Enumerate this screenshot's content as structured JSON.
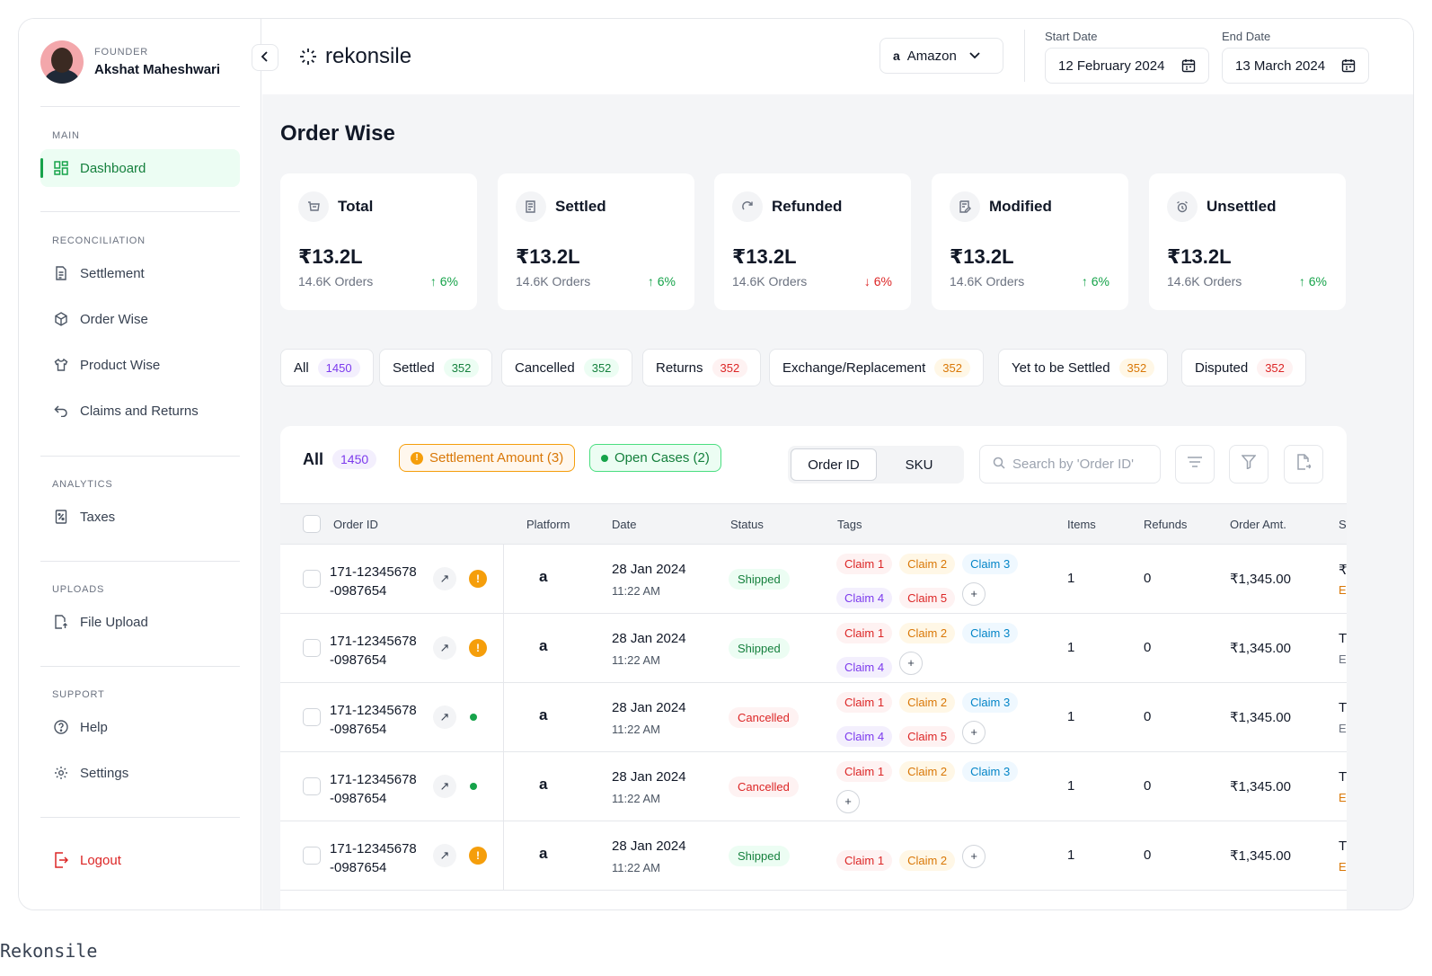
{
  "profile": {
    "role": "FOUNDER",
    "name": "Akshat Maheshwari"
  },
  "sidebar": {
    "sections": {
      "main": "MAIN",
      "reconciliation": "RECONCILIATION",
      "analytics": "ANALYTICS",
      "uploads": "UPLOADS",
      "support": "SUPPORT"
    },
    "items": {
      "dashboard": "Dashboard",
      "settlement": "Settlement",
      "order_wise": "Order Wise",
      "product_wise": "Product Wise",
      "claims_returns": "Claims and Returns",
      "taxes": "Taxes",
      "file_upload": "File Upload",
      "help": "Help",
      "settings": "Settings",
      "logout": "Logout"
    }
  },
  "header": {
    "brand": "rekonsile",
    "platform": {
      "icon": "a",
      "label": "Amazon"
    },
    "start_date": {
      "label": "Start Date",
      "value": "12 February 2024"
    },
    "end_date": {
      "label": "End Date",
      "value": "13 March 2024"
    }
  },
  "page": {
    "title": "Order Wise"
  },
  "stats": [
    {
      "title": "Total",
      "value": "₹13.2L",
      "sub": "14.6K Orders",
      "change": "↑ 6%",
      "direction": "up"
    },
    {
      "title": "Settled",
      "value": "₹13.2L",
      "sub": "14.6K Orders",
      "change": "↑ 6%",
      "direction": "up"
    },
    {
      "title": "Refunded",
      "value": "₹13.2L",
      "sub": "14.6K Orders",
      "change": "↓ 6%",
      "direction": "down"
    },
    {
      "title": "Modified",
      "value": "₹13.2L",
      "sub": "14.6K Orders",
      "change": "↑ 6%",
      "direction": "up"
    },
    {
      "title": "Unsettled",
      "value": "₹13.2L",
      "sub": "14.6K Orders",
      "change": "↑ 6%",
      "direction": "up"
    }
  ],
  "filters": [
    {
      "label": "All",
      "count": "1450",
      "color": "purple"
    },
    {
      "label": "Settled",
      "count": "352",
      "color": "green"
    },
    {
      "label": "Cancelled",
      "count": "352",
      "color": "green"
    },
    {
      "label": "Returns",
      "count": "352",
      "color": "red"
    },
    {
      "label": "Exchange/Replacement",
      "count": "352",
      "color": "orange"
    },
    {
      "label": "Yet to be Settled",
      "count": "352",
      "color": "orange"
    },
    {
      "label": "Disputed",
      "count": "352",
      "color": "red"
    }
  ],
  "panel": {
    "title": "All",
    "count": "1450",
    "chip_warning": "Settlement Amount (3)",
    "chip_ok": "Open Cases (2)",
    "toggle": {
      "order_id": "Order ID",
      "sku": "SKU"
    },
    "search_placeholder": "Search by  'Order ID'"
  },
  "table": {
    "columns": {
      "order_id": "Order ID",
      "platform": "Platform",
      "date": "Date",
      "status": "Status",
      "tags": "Tags",
      "items": "Items",
      "refunds": "Refunds",
      "order_amt": "Order Amt.",
      "settlement_trunc": "S"
    },
    "rows": [
      {
        "id_line1": "171-12345678",
        "id_line2": "-0987654",
        "flag": "warning",
        "platform": "a",
        "date": "28 Jan 2024",
        "time": "11:22 AM",
        "status": "Shipped",
        "tags": [
          "Claim 1",
          "Claim 2",
          "Claim 3",
          "Claim 4",
          "Claim 5"
        ],
        "items": "1",
        "refunds": "0",
        "amount": "₹1,345.00",
        "trunc1": "₹",
        "trunc2": "E"
      },
      {
        "id_line1": "171-12345678",
        "id_line2": "-0987654",
        "flag": "warning",
        "platform": "a",
        "date": "28 Jan 2024",
        "time": "11:22 AM",
        "status": "Shipped",
        "tags": [
          "Claim 1",
          "Claim 2",
          "Claim 3",
          "Claim 4"
        ],
        "items": "1",
        "refunds": "0",
        "amount": "₹1,345.00",
        "trunc1": "T",
        "trunc2": "E"
      },
      {
        "id_line1": "171-12345678",
        "id_line2": "-0987654",
        "flag": "ok",
        "platform": "a",
        "date": "28 Jan 2024",
        "time": "11:22 AM",
        "status": "Cancelled",
        "tags": [
          "Claim 1",
          "Claim 2",
          "Claim 3",
          "Claim 4",
          "Claim 5"
        ],
        "items": "1",
        "refunds": "0",
        "amount": "₹1,345.00",
        "trunc1": "T",
        "trunc2": "E"
      },
      {
        "id_line1": "171-12345678",
        "id_line2": "-0987654",
        "flag": "ok",
        "platform": "a",
        "date": "28 Jan 2024",
        "time": "11:22 AM",
        "status": "Cancelled",
        "tags": [
          "Claim 1",
          "Claim 2",
          "Claim 3"
        ],
        "items": "1",
        "refunds": "0",
        "amount": "₹1,345.00",
        "trunc1": "T",
        "trunc2": "E"
      },
      {
        "id_line1": "171-12345678",
        "id_line2": "-0987654",
        "flag": "warning",
        "platform": "a",
        "date": "28 Jan 2024",
        "time": "11:22 AM",
        "status": "Shipped",
        "tags": [
          "Claim 1",
          "Claim 2"
        ],
        "items": "1",
        "refunds": "0",
        "amount": "₹1,345.00",
        "trunc1": "T",
        "trunc2": "E"
      }
    ]
  },
  "caption": "Rekonsile",
  "colors": {
    "accent": "#16a34a",
    "danger": "#dc2626",
    "warning": "#f59e0b"
  }
}
